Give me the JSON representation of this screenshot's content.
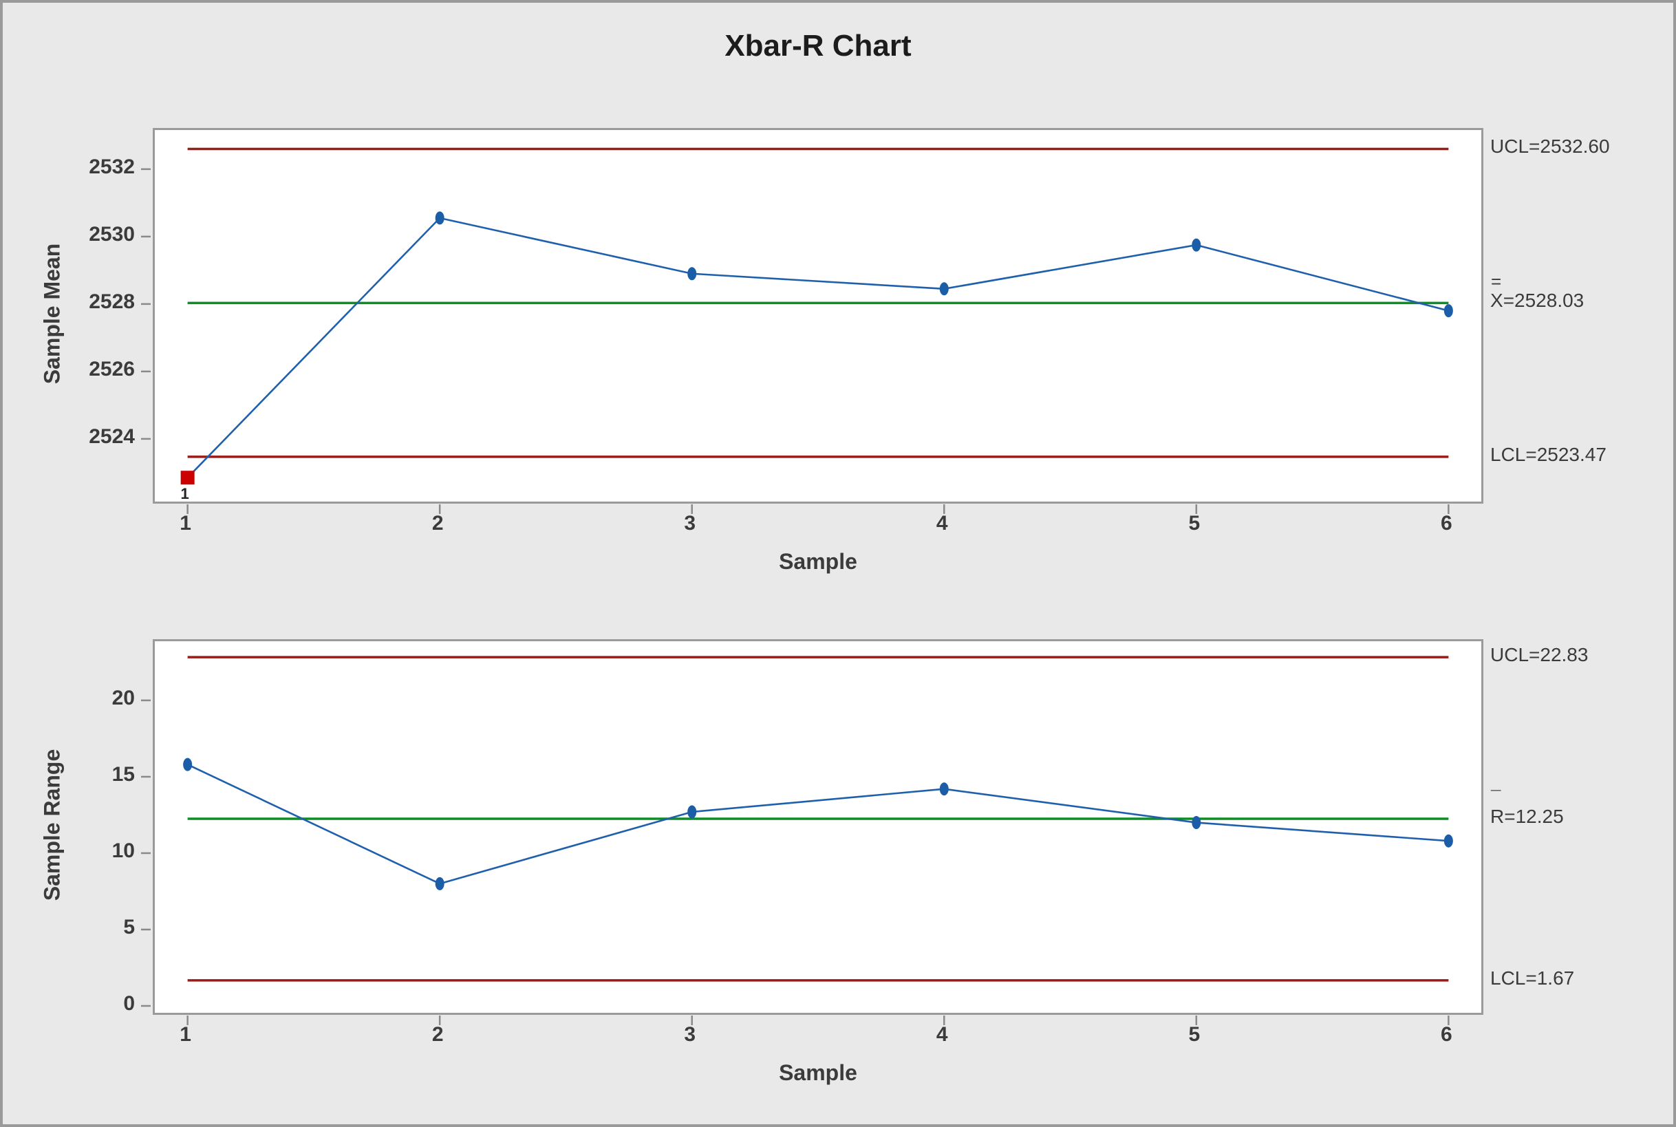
{
  "title": "Xbar-R Chart",
  "colors": {
    "series_line": "#1f60ad",
    "marker": "#1c5da8",
    "out_marker": "#cd0000",
    "limit_line": "#9b1b19",
    "center_line": "#0e8c25",
    "tick": "#8a8a8a",
    "text": "#3b3b3b",
    "title_text": "#1c1c1c",
    "background": "#e9e9e9",
    "panel": "#ffffff",
    "border": "#9a9a9a"
  },
  "chart_data": [
    {
      "type": "line",
      "name": "Xbar chart",
      "ylabel": "Sample Mean",
      "xlabel": "Sample",
      "x": [
        1,
        2,
        3,
        4,
        5,
        6
      ],
      "xticks": [
        1,
        2,
        3,
        4,
        5,
        6
      ],
      "values": [
        2522.85,
        2530.55,
        2528.9,
        2528.45,
        2529.75,
        2527.8
      ],
      "yticks": [
        2524,
        2526,
        2528,
        2530,
        2532
      ],
      "ylim": [
        2522.14,
        2533.16
      ],
      "xlim": [
        0.87,
        6.13
      ],
      "ucl": 2532.6,
      "center": 2528.03,
      "lcl": 2523.47,
      "ucl_label": "UCL=2532.60",
      "center_label": {
        "mark": "=",
        "base": "X",
        "rest": "=2528.03"
      },
      "lcl_label": "LCL=2523.47",
      "out_of_control": {
        "indices": [
          0
        ],
        "label": "1"
      },
      "legend_position": "right",
      "grid": "off"
    },
    {
      "type": "line",
      "name": "R chart",
      "ylabel": "Sample Range",
      "xlabel": "Sample",
      "x": [
        1,
        2,
        3,
        4,
        5,
        6
      ],
      "xticks": [
        1,
        2,
        3,
        4,
        5,
        6
      ],
      "values": [
        15.8,
        8,
        12.7,
        14.2,
        12,
        10.8
      ],
      "yticks": [
        0,
        5,
        10,
        15,
        20
      ],
      "ylim": [
        -0.45,
        23.87
      ],
      "xlim": [
        0.87,
        6.13
      ],
      "ucl": 22.83,
      "center": 12.25,
      "lcl": 1.67,
      "ucl_label": "UCL=22.83",
      "center_label": {
        "mark": "¯",
        "base": "R",
        "rest": "=12.25"
      },
      "lcl_label": "LCL=1.67",
      "out_of_control": {
        "indices": [],
        "label": ""
      },
      "legend_position": "right",
      "grid": "off"
    }
  ]
}
